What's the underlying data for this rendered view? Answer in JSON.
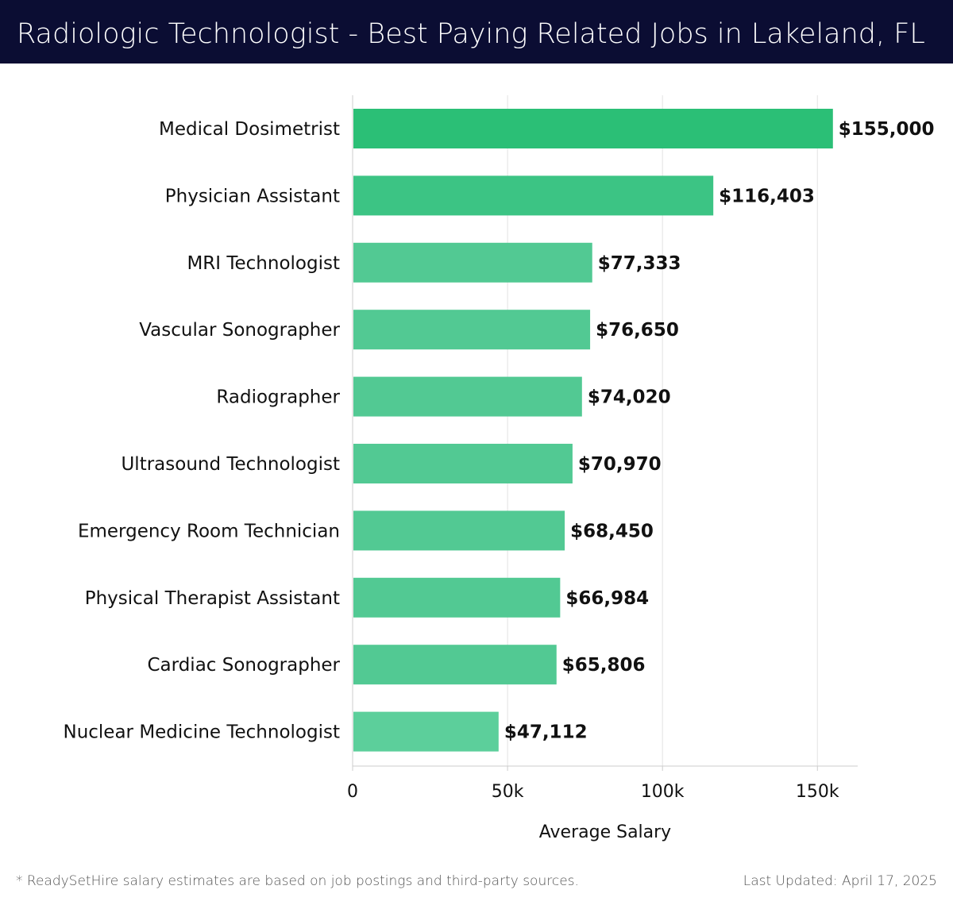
{
  "header": {
    "title": "Radiologic Technologist - Best Paying Related Jobs in Lakeland, FL"
  },
  "chart_data": {
    "type": "bar",
    "orientation": "horizontal",
    "title": "Radiologic Technologist - Best Paying Related Jobs in Lakeland, FL",
    "xlabel": "Average Salary",
    "ylabel": "",
    "categories": [
      "Medical Dosimetrist",
      "Physician Assistant",
      "MRI Technologist",
      "Vascular Sonographer",
      "Radiographer",
      "Ultrasound Technologist",
      "Emergency Room Technician",
      "Physical Therapist Assistant",
      "Cardiac Sonographer",
      "Nuclear Medicine Technologist"
    ],
    "values": [
      155000,
      116403,
      77333,
      76650,
      74020,
      70970,
      68450,
      66984,
      65806,
      47112
    ],
    "value_labels": [
      "$155,000",
      "$116,403",
      "$77,333",
      "$76,650",
      "$74,020",
      "$70,970",
      "$68,450",
      "$66,984",
      "$65,806",
      "$47,112"
    ],
    "xlim": [
      0,
      163000
    ],
    "xticks": [
      0,
      50000,
      100000,
      150000
    ],
    "xtick_labels": [
      "0",
      "50k",
      "100k",
      "150k"
    ],
    "grid": "vertical",
    "colors": {
      "bar_top": "#2bbf76",
      "bar_mid": "#3cc484",
      "bar_light": "#52c993",
      "bar_bottom": "#5ccf9b",
      "grid": "#e3e3e3",
      "axis": "#cccccc",
      "label_text": "#111111"
    }
  },
  "footer": {
    "note": "* ReadySetHire salary estimates are based on job postings and third-party sources.",
    "updated": "Last Updated: April 17, 2025"
  }
}
